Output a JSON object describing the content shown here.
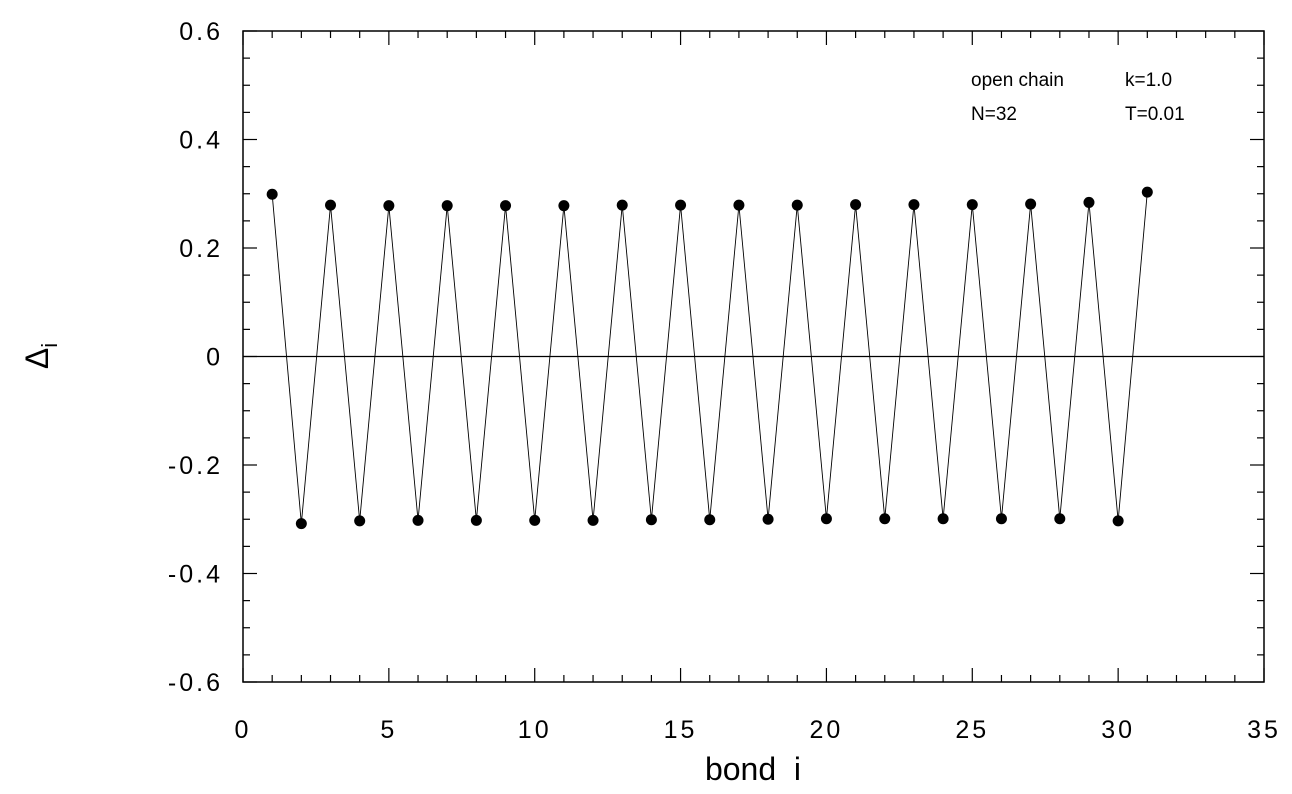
{
  "chart_data": {
    "type": "line",
    "xlabel": "bond  i",
    "ylabel_main": "Δ",
    "ylabel_sub": "i",
    "xlim": [
      0,
      35
    ],
    "ylim": [
      -0.6,
      0.6
    ],
    "x_major_ticks": [
      0,
      5,
      10,
      15,
      20,
      25,
      30,
      35
    ],
    "x_tick_labels": [
      "0",
      "5",
      "10",
      "15",
      "20",
      "25",
      "30",
      "35"
    ],
    "y_major_ticks": [
      -0.6,
      -0.4,
      -0.2,
      0,
      0.2,
      0.4,
      0.6
    ],
    "y_tick_labels": [
      "-0.6",
      "-0.4",
      "-0.2",
      "0",
      "0.2",
      "0.4",
      "0.6"
    ],
    "grid": false,
    "zero_line": true,
    "annotations": [
      {
        "text": "open chain",
        "row": 1,
        "col": 1
      },
      {
        "text": "k=1.0",
        "row": 1,
        "col": 2
      },
      {
        "text": "N=32",
        "row": 2,
        "col": 1
      },
      {
        "text": "T=0.01",
        "row": 2,
        "col": 2
      }
    ],
    "series": [
      {
        "x": [
          1,
          2,
          3,
          4,
          5,
          6,
          7,
          8,
          9,
          10,
          11,
          12,
          13,
          14,
          15,
          16,
          17,
          18,
          19,
          20,
          21,
          22,
          23,
          24,
          25,
          26,
          27,
          28,
          29,
          30,
          31
        ],
        "y": [
          0.299,
          -0.308,
          0.279,
          -0.303,
          0.278,
          -0.302,
          0.278,
          -0.302,
          0.278,
          -0.302,
          0.278,
          -0.302,
          0.279,
          -0.301,
          0.279,
          -0.301,
          0.279,
          -0.3,
          0.279,
          -0.299,
          0.28,
          -0.299,
          0.28,
          -0.299,
          0.28,
          -0.299,
          0.281,
          -0.299,
          0.284,
          -0.303,
          0.303
        ]
      }
    ]
  }
}
